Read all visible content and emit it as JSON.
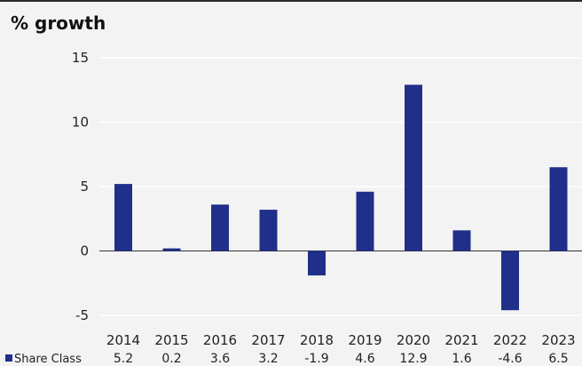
{
  "chart_data": {
    "type": "bar",
    "title": "% growth",
    "xlabel": "",
    "ylabel": "",
    "categories": [
      "2014",
      "2015",
      "2016",
      "2017",
      "2018",
      "2019",
      "2020",
      "2021",
      "2022",
      "2023"
    ],
    "series": [
      {
        "name": "Share Class",
        "values": [
          5.2,
          0.2,
          3.6,
          3.2,
          -1.9,
          4.6,
          12.9,
          1.6,
          -4.6,
          6.5
        ],
        "labels": [
          "5.2",
          "0.2",
          "3.6",
          "3.2",
          "-1.9",
          "4.6",
          "12.9",
          "1.6",
          "-4.6",
          "6.5"
        ],
        "color": "#1f2f8a"
      }
    ],
    "ylim": [
      -5,
      15
    ],
    "yticks": [
      15,
      10,
      5,
      0,
      -5
    ],
    "grid": true,
    "grid_color": "#ffffff",
    "legend_position": "bottom-left, as table row"
  }
}
